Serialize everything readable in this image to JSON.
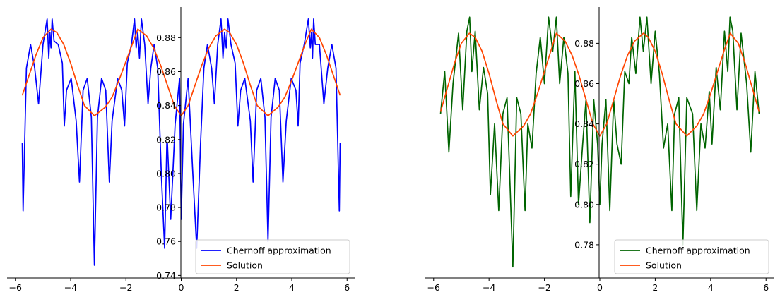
{
  "chart_data": [
    {
      "type": "line",
      "title": "",
      "xlabel": "",
      "ylabel": "",
      "xlim": [
        -6.3,
        6.3
      ],
      "ylim": [
        0.7385,
        0.898
      ],
      "x_ticks": [
        "−6",
        "−4",
        "−2",
        "0",
        "2",
        "4",
        "6"
      ],
      "y_ticks": [
        "0.74",
        "0.76",
        "0.78",
        "0.80",
        "0.82",
        "0.84",
        "0.86",
        "0.88"
      ],
      "grid": false,
      "legend_position": "lower-right",
      "series": [
        {
          "name": "Chernoff approximation",
          "color": "#0000ff",
          "x": [
            -5.75,
            -5.72,
            -5.6,
            -5.45,
            -5.3,
            -5.16,
            -5.0,
            -4.85,
            -4.79,
            -4.75,
            -4.71,
            -4.67,
            -4.6,
            -4.45,
            -4.3,
            -4.23,
            -4.15,
            -3.98,
            -3.8,
            -3.68,
            -3.55,
            -3.4,
            -3.25,
            -3.14,
            -3.03,
            -2.88,
            -2.73,
            -2.6,
            -2.5,
            -2.3,
            -2.15,
            -2.05,
            -1.95,
            -1.8,
            -1.69,
            -1.63,
            -1.57,
            -1.51,
            -1.44,
            -1.32,
            -1.2,
            -1.1,
            -0.98,
            -0.85,
            -0.72,
            -0.6,
            -0.52,
            -0.5,
            -0.38,
            -0.22,
            -0.06,
            0.0,
            0.08,
            0.25,
            0.42,
            0.56,
            0.7,
            0.82,
            0.95,
            1.1,
            1.2,
            1.32,
            1.44,
            1.51,
            1.57,
            1.63,
            1.69,
            1.8,
            1.95,
            2.05,
            2.15,
            2.3,
            2.5,
            2.6,
            2.73,
            2.88,
            3.03,
            3.14,
            3.25,
            3.4,
            3.55,
            3.68,
            3.8,
            3.98,
            4.15,
            4.23,
            4.3,
            4.45,
            4.6,
            4.67,
            4.71,
            4.75,
            4.79,
            4.85,
            5.0,
            5.16,
            5.3,
            5.45,
            5.6,
            5.72,
            5.75
          ],
          "y": [
            0.818,
            0.778,
            0.862,
            0.876,
            0.862,
            0.841,
            0.876,
            0.891,
            0.868,
            0.883,
            0.874,
            0.891,
            0.878,
            0.876,
            0.865,
            0.828,
            0.849,
            0.856,
            0.831,
            0.795,
            0.849,
            0.856,
            0.833,
            0.746,
            0.833,
            0.856,
            0.849,
            0.795,
            0.831,
            0.856,
            0.849,
            0.828,
            0.865,
            0.876,
            0.891,
            0.874,
            0.883,
            0.868,
            0.891,
            0.876,
            0.841,
            0.862,
            0.876,
            0.862,
            0.8,
            0.756,
            0.818,
            0.818,
            0.773,
            0.829,
            0.856,
            0.773,
            0.829,
            0.856,
            0.8,
            0.756,
            0.818,
            0.862,
            0.876,
            0.862,
            0.841,
            0.876,
            0.891,
            0.868,
            0.883,
            0.874,
            0.891,
            0.876,
            0.865,
            0.828,
            0.849,
            0.856,
            0.831,
            0.795,
            0.849,
            0.856,
            0.833,
            0.76,
            0.833,
            0.856,
            0.849,
            0.795,
            0.831,
            0.856,
            0.849,
            0.828,
            0.865,
            0.876,
            0.891,
            0.874,
            0.883,
            0.868,
            0.891,
            0.876,
            0.876,
            0.841,
            0.862,
            0.876,
            0.862,
            0.778,
            0.818
          ]
        },
        {
          "name": "Solution",
          "color": "#ff4500",
          "x": [
            -5.75,
            -5.5,
            -5.25,
            -5.0,
            -4.71,
            -4.5,
            -4.25,
            -4.0,
            -3.75,
            -3.5,
            -3.14,
            -2.75,
            -2.5,
            -2.25,
            -2.0,
            -1.75,
            -1.57,
            -1.25,
            -1.0,
            -0.75,
            -0.5,
            -0.25,
            0.0,
            0.25,
            0.5,
            0.75,
            1.0,
            1.25,
            1.57,
            1.75,
            2.0,
            2.25,
            2.5,
            2.75,
            3.14,
            3.5,
            3.75,
            4.0,
            4.25,
            4.5,
            4.71,
            5.0,
            5.25,
            5.5,
            5.75
          ],
          "y": [
            0.846,
            0.858,
            0.87,
            0.88,
            0.885,
            0.883,
            0.876,
            0.865,
            0.852,
            0.84,
            0.834,
            0.839,
            0.845,
            0.855,
            0.866,
            0.877,
            0.885,
            0.881,
            0.874,
            0.864,
            0.852,
            0.84,
            0.834,
            0.84,
            0.852,
            0.864,
            0.874,
            0.881,
            0.885,
            0.883,
            0.876,
            0.865,
            0.852,
            0.84,
            0.834,
            0.839,
            0.845,
            0.855,
            0.866,
            0.877,
            0.885,
            0.88,
            0.87,
            0.858,
            0.846
          ]
        }
      ]
    },
    {
      "type": "line",
      "title": "",
      "xlabel": "",
      "ylabel": "",
      "xlim": [
        -6.3,
        6.3
      ],
      "ylim": [
        0.7635,
        0.898
      ],
      "x_ticks": [
        "−6",
        "−4",
        "−2",
        "0",
        "2",
        "4",
        "6"
      ],
      "y_ticks": [
        "0.78",
        "0.80",
        "0.82",
        "0.84",
        "0.86",
        "0.88"
      ],
      "grid": false,
      "legend_position": "lower-right",
      "series": [
        {
          "name": "Chernoff approximation",
          "color": "#006400",
          "x": [
            -5.75,
            -5.6,
            -5.45,
            -5.3,
            -5.1,
            -4.95,
            -4.8,
            -4.7,
            -4.62,
            -4.5,
            -4.35,
            -4.2,
            -4.05,
            -3.95,
            -3.8,
            -3.65,
            -3.5,
            -3.35,
            -3.14,
            -3.0,
            -2.85,
            -2.7,
            -2.6,
            -2.45,
            -2.3,
            -2.15,
            -2.0,
            -1.85,
            -1.7,
            -1.57,
            -1.45,
            -1.3,
            -1.15,
            -1.05,
            -0.9,
            -0.77,
            -0.62,
            -0.5,
            -0.36,
            -0.22,
            -0.08,
            0.0,
            0.08,
            0.22,
            0.36,
            0.5,
            0.62,
            0.77,
            0.9,
            1.05,
            1.15,
            1.3,
            1.45,
            1.57,
            1.7,
            1.85,
            2.0,
            2.15,
            2.3,
            2.45,
            2.6,
            2.7,
            2.85,
            3.0,
            3.14,
            3.35,
            3.5,
            3.65,
            3.8,
            3.95,
            4.05,
            4.2,
            4.35,
            4.5,
            4.62,
            4.7,
            4.8,
            4.95,
            5.1,
            5.3,
            5.45,
            5.6,
            5.75
          ],
          "y": [
            0.845,
            0.866,
            0.826,
            0.86,
            0.885,
            0.847,
            0.886,
            0.893,
            0.866,
            0.886,
            0.847,
            0.868,
            0.855,
            0.805,
            0.84,
            0.797,
            0.845,
            0.853,
            0.769,
            0.853,
            0.845,
            0.797,
            0.84,
            0.828,
            0.865,
            0.883,
            0.86,
            0.893,
            0.876,
            0.893,
            0.86,
            0.883,
            0.865,
            0.804,
            0.866,
            0.8,
            0.83,
            0.852,
            0.791,
            0.852,
            0.83,
            0.8,
            0.83,
            0.852,
            0.797,
            0.852,
            0.83,
            0.82,
            0.866,
            0.86,
            0.883,
            0.865,
            0.893,
            0.876,
            0.893,
            0.86,
            0.886,
            0.865,
            0.828,
            0.84,
            0.797,
            0.845,
            0.853,
            0.78,
            0.853,
            0.845,
            0.797,
            0.84,
            0.828,
            0.856,
            0.83,
            0.868,
            0.847,
            0.886,
            0.866,
            0.893,
            0.886,
            0.847,
            0.885,
            0.86,
            0.826,
            0.866,
            0.845
          ]
        },
        {
          "name": "Solution",
          "color": "#ff4500",
          "x": [
            -5.75,
            -5.5,
            -5.25,
            -5.0,
            -4.71,
            -4.5,
            -4.25,
            -4.0,
            -3.75,
            -3.5,
            -3.14,
            -2.75,
            -2.5,
            -2.25,
            -2.0,
            -1.75,
            -1.57,
            -1.25,
            -1.0,
            -0.75,
            -0.5,
            -0.25,
            0.0,
            0.25,
            0.5,
            0.75,
            1.0,
            1.25,
            1.57,
            1.75,
            2.0,
            2.25,
            2.5,
            2.75,
            3.14,
            3.5,
            3.75,
            4.0,
            4.25,
            4.5,
            4.71,
            5.0,
            5.25,
            5.5,
            5.75
          ],
          "y": [
            0.846,
            0.858,
            0.87,
            0.88,
            0.885,
            0.883,
            0.876,
            0.865,
            0.852,
            0.84,
            0.834,
            0.839,
            0.845,
            0.855,
            0.866,
            0.877,
            0.885,
            0.881,
            0.874,
            0.864,
            0.852,
            0.84,
            0.834,
            0.84,
            0.852,
            0.864,
            0.874,
            0.881,
            0.885,
            0.883,
            0.876,
            0.865,
            0.852,
            0.84,
            0.834,
            0.839,
            0.845,
            0.855,
            0.866,
            0.877,
            0.885,
            0.88,
            0.87,
            0.858,
            0.846
          ]
        }
      ]
    }
  ]
}
